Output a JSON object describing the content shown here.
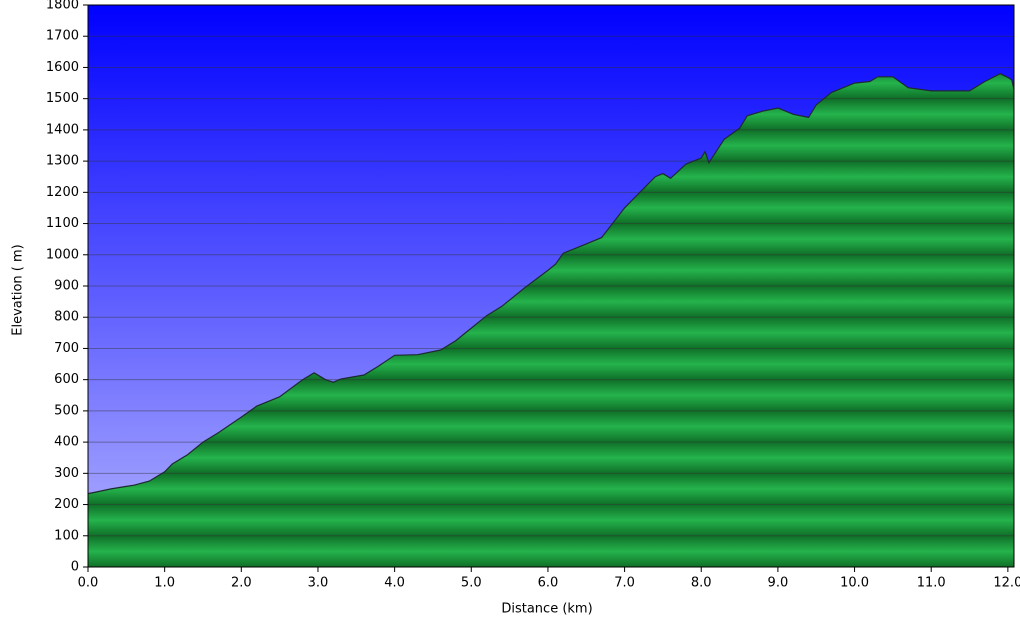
{
  "chart_data": {
    "type": "area",
    "ylabel": "Elevation ( m)",
    "xlabel": "Distance  (km)",
    "x": [
      0,
      0.1,
      0.3,
      0.5,
      0.6,
      0.8,
      1.0,
      1.1,
      1.3,
      1.5,
      1.7,
      2.0,
      2.2,
      2.5,
      2.8,
      2.95,
      3.1,
      3.2,
      3.3,
      3.6,
      3.8,
      4.0,
      4.3,
      4.6,
      4.8,
      5.0,
      5.2,
      5.4,
      5.7,
      6.0,
      6.1,
      6.2,
      6.5,
      6.7,
      7.0,
      7.2,
      7.4,
      7.5,
      7.6,
      7.8,
      8.0,
      8.05,
      8.1,
      8.3,
      8.5,
      8.6,
      8.8,
      9.0,
      9.2,
      9.4,
      9.5,
      9.7,
      10.0,
      10.2,
      10.3,
      10.5,
      10.7,
      11.0,
      11.3,
      11.5,
      11.7,
      11.9,
      12.0,
      12.05,
      12.08
    ],
    "values": [
      235,
      240,
      250,
      258,
      262,
      275,
      305,
      330,
      360,
      400,
      430,
      480,
      515,
      545,
      600,
      622,
      600,
      592,
      602,
      615,
      645,
      678,
      680,
      695,
      725,
      765,
      805,
      835,
      895,
      950,
      970,
      1005,
      1035,
      1055,
      1150,
      1200,
      1250,
      1260,
      1245,
      1290,
      1310,
      1330,
      1295,
      1370,
      1405,
      1445,
      1460,
      1470,
      1450,
      1440,
      1480,
      1520,
      1550,
      1555,
      1570,
      1570,
      1535,
      1525,
      1525,
      1525,
      1555,
      1580,
      1568,
      1560,
      1530
    ],
    "color": "#1fa843",
    "xlim": [
      0,
      12.08
    ],
    "ylim": [
      0,
      1800
    ],
    "xticks": [
      {
        "value": 0,
        "label": "0.0"
      },
      {
        "value": 1,
        "label": "1.0"
      },
      {
        "value": 2,
        "label": "2.0"
      },
      {
        "value": 3,
        "label": "3.0"
      },
      {
        "value": 4,
        "label": "4.0"
      },
      {
        "value": 5,
        "label": "5.0"
      },
      {
        "value": 6,
        "label": "6.0"
      },
      {
        "value": 7,
        "label": "7.0"
      },
      {
        "value": 8,
        "label": "8.0"
      },
      {
        "value": 9,
        "label": "9.0"
      },
      {
        "value": 10,
        "label": "10.0"
      },
      {
        "value": 11,
        "label": "11.0"
      },
      {
        "value": 12,
        "label": "12.0"
      }
    ],
    "yticks": [
      0,
      100,
      200,
      300,
      400,
      500,
      600,
      700,
      800,
      900,
      1000,
      1100,
      1200,
      1300,
      1400,
      1500,
      1600,
      1700,
      1800
    ],
    "grid": true
  }
}
